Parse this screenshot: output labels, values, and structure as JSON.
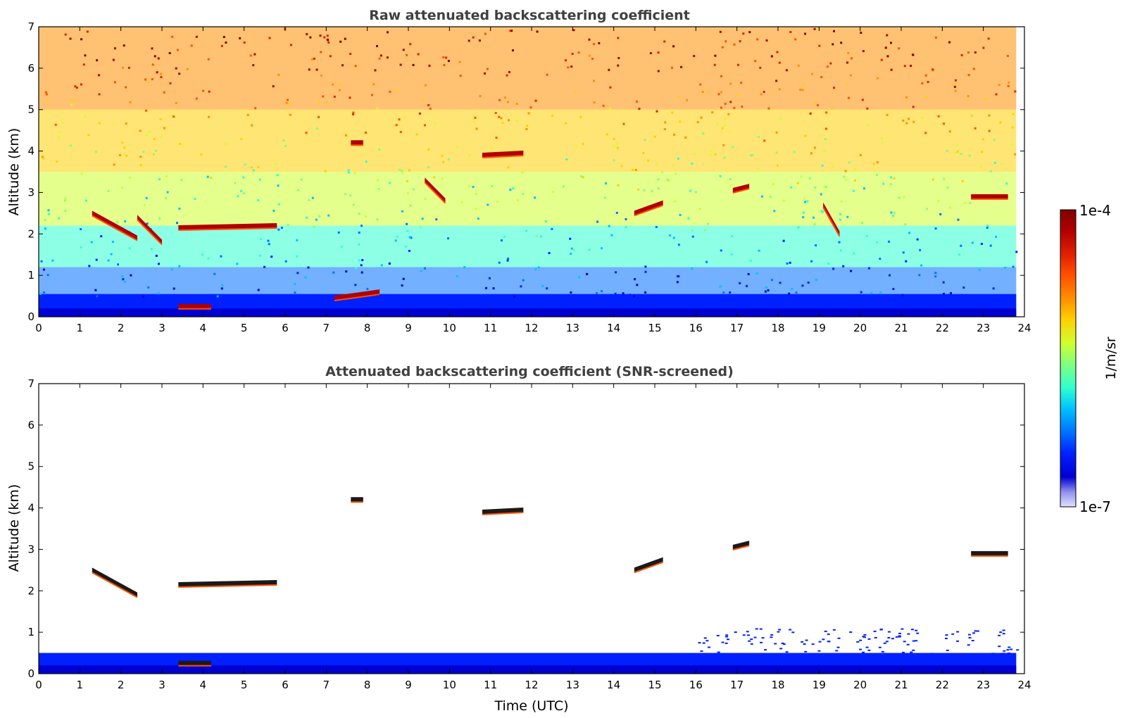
{
  "chart_data": [
    {
      "type": "heatmap",
      "title": "Raw attenuated backscattering coefficient",
      "xlabel": "",
      "ylabel": "Altitude (km)",
      "xlim": [
        0,
        24
      ],
      "ylim": [
        0,
        7
      ],
      "xticks": [
        "0",
        "1",
        "2",
        "3",
        "4",
        "5",
        "6",
        "7",
        "8",
        "9",
        "10",
        "11",
        "12",
        "13",
        "14",
        "15",
        "16",
        "17",
        "18",
        "19",
        "20",
        "21",
        "22",
        "23",
        "24"
      ],
      "yticks": [
        "0",
        "1",
        "2",
        "3",
        "4",
        "5",
        "6",
        "7"
      ],
      "data_end_hour": 23.8,
      "noise_background": true,
      "cloud_layers": [
        {
          "t0": 1.3,
          "t1": 2.4,
          "alt": [
            2.5,
            1.9
          ]
        },
        {
          "t0": 2.4,
          "t1": 3.0,
          "alt": [
            2.4,
            1.8
          ]
        },
        {
          "t0": 3.4,
          "t1": 5.8,
          "alt": [
            2.15,
            2.2
          ]
        },
        {
          "t0": 7.6,
          "t1": 7.9,
          "alt": [
            4.2,
            4.2
          ]
        },
        {
          "t0": 10.8,
          "t1": 11.8,
          "alt": [
            3.9,
            3.95
          ]
        },
        {
          "t0": 14.5,
          "t1": 15.2,
          "alt": [
            2.5,
            2.75
          ]
        },
        {
          "t0": 16.9,
          "t1": 17.3,
          "alt": [
            3.05,
            3.15
          ]
        },
        {
          "t0": 22.7,
          "t1": 23.6,
          "alt": [
            2.9,
            2.9
          ]
        },
        {
          "t0": 3.4,
          "t1": 4.2,
          "alt": [
            0.25,
            0.25
          ]
        },
        {
          "t0": 7.2,
          "t1": 8.3,
          "alt": [
            0.45,
            0.6
          ]
        },
        {
          "t0": 9.4,
          "t1": 9.9,
          "alt": [
            3.3,
            2.8
          ]
        },
        {
          "t0": 19.1,
          "t1": 19.5,
          "alt": [
            2.7,
            2.0
          ]
        }
      ]
    },
    {
      "type": "heatmap",
      "title": "Attenuated backscattering coefficient (SNR-screened)",
      "xlabel": "Time (UTC)",
      "ylabel": "Altitude (km)",
      "xlim": [
        0,
        24
      ],
      "ylim": [
        0,
        7
      ],
      "xticks": [
        "0",
        "1",
        "2",
        "3",
        "4",
        "5",
        "6",
        "7",
        "8",
        "9",
        "10",
        "11",
        "12",
        "13",
        "14",
        "15",
        "16",
        "17",
        "18",
        "19",
        "20",
        "21",
        "22",
        "23",
        "24"
      ],
      "yticks": [
        "0",
        "1",
        "2",
        "3",
        "4",
        "5",
        "6",
        "7"
      ],
      "data_end_hour": 23.8,
      "noise_background": false,
      "cloud_layers": [
        {
          "t0": 1.3,
          "t1": 2.4,
          "alt": [
            2.5,
            1.9
          ]
        },
        {
          "t0": 3.4,
          "t1": 5.8,
          "alt": [
            2.15,
            2.2
          ]
        },
        {
          "t0": 7.6,
          "t1": 7.9,
          "alt": [
            4.2,
            4.2
          ]
        },
        {
          "t0": 10.8,
          "t1": 11.8,
          "alt": [
            3.9,
            3.95
          ]
        },
        {
          "t0": 14.5,
          "t1": 15.2,
          "alt": [
            2.5,
            2.75
          ]
        },
        {
          "t0": 16.9,
          "t1": 17.3,
          "alt": [
            3.05,
            3.15
          ]
        },
        {
          "t0": 22.7,
          "t1": 23.6,
          "alt": [
            2.9,
            2.9
          ]
        },
        {
          "t0": 3.4,
          "t1": 4.2,
          "alt": [
            0.25,
            0.25
          ]
        }
      ]
    }
  ],
  "colorbar": {
    "label": "1/m/sr",
    "max_label": "1e-4",
    "min_label": "1e-7",
    "colormap": [
      "#800000",
      "#b00000",
      "#e02000",
      "#ff5000",
      "#ff9000",
      "#ffd000",
      "#d0ff30",
      "#80ff80",
      "#30ffd0",
      "#00c0ff",
      "#0070ff",
      "#0020ff",
      "#0000d0",
      "#9090ee",
      "#e0e0ff"
    ]
  }
}
